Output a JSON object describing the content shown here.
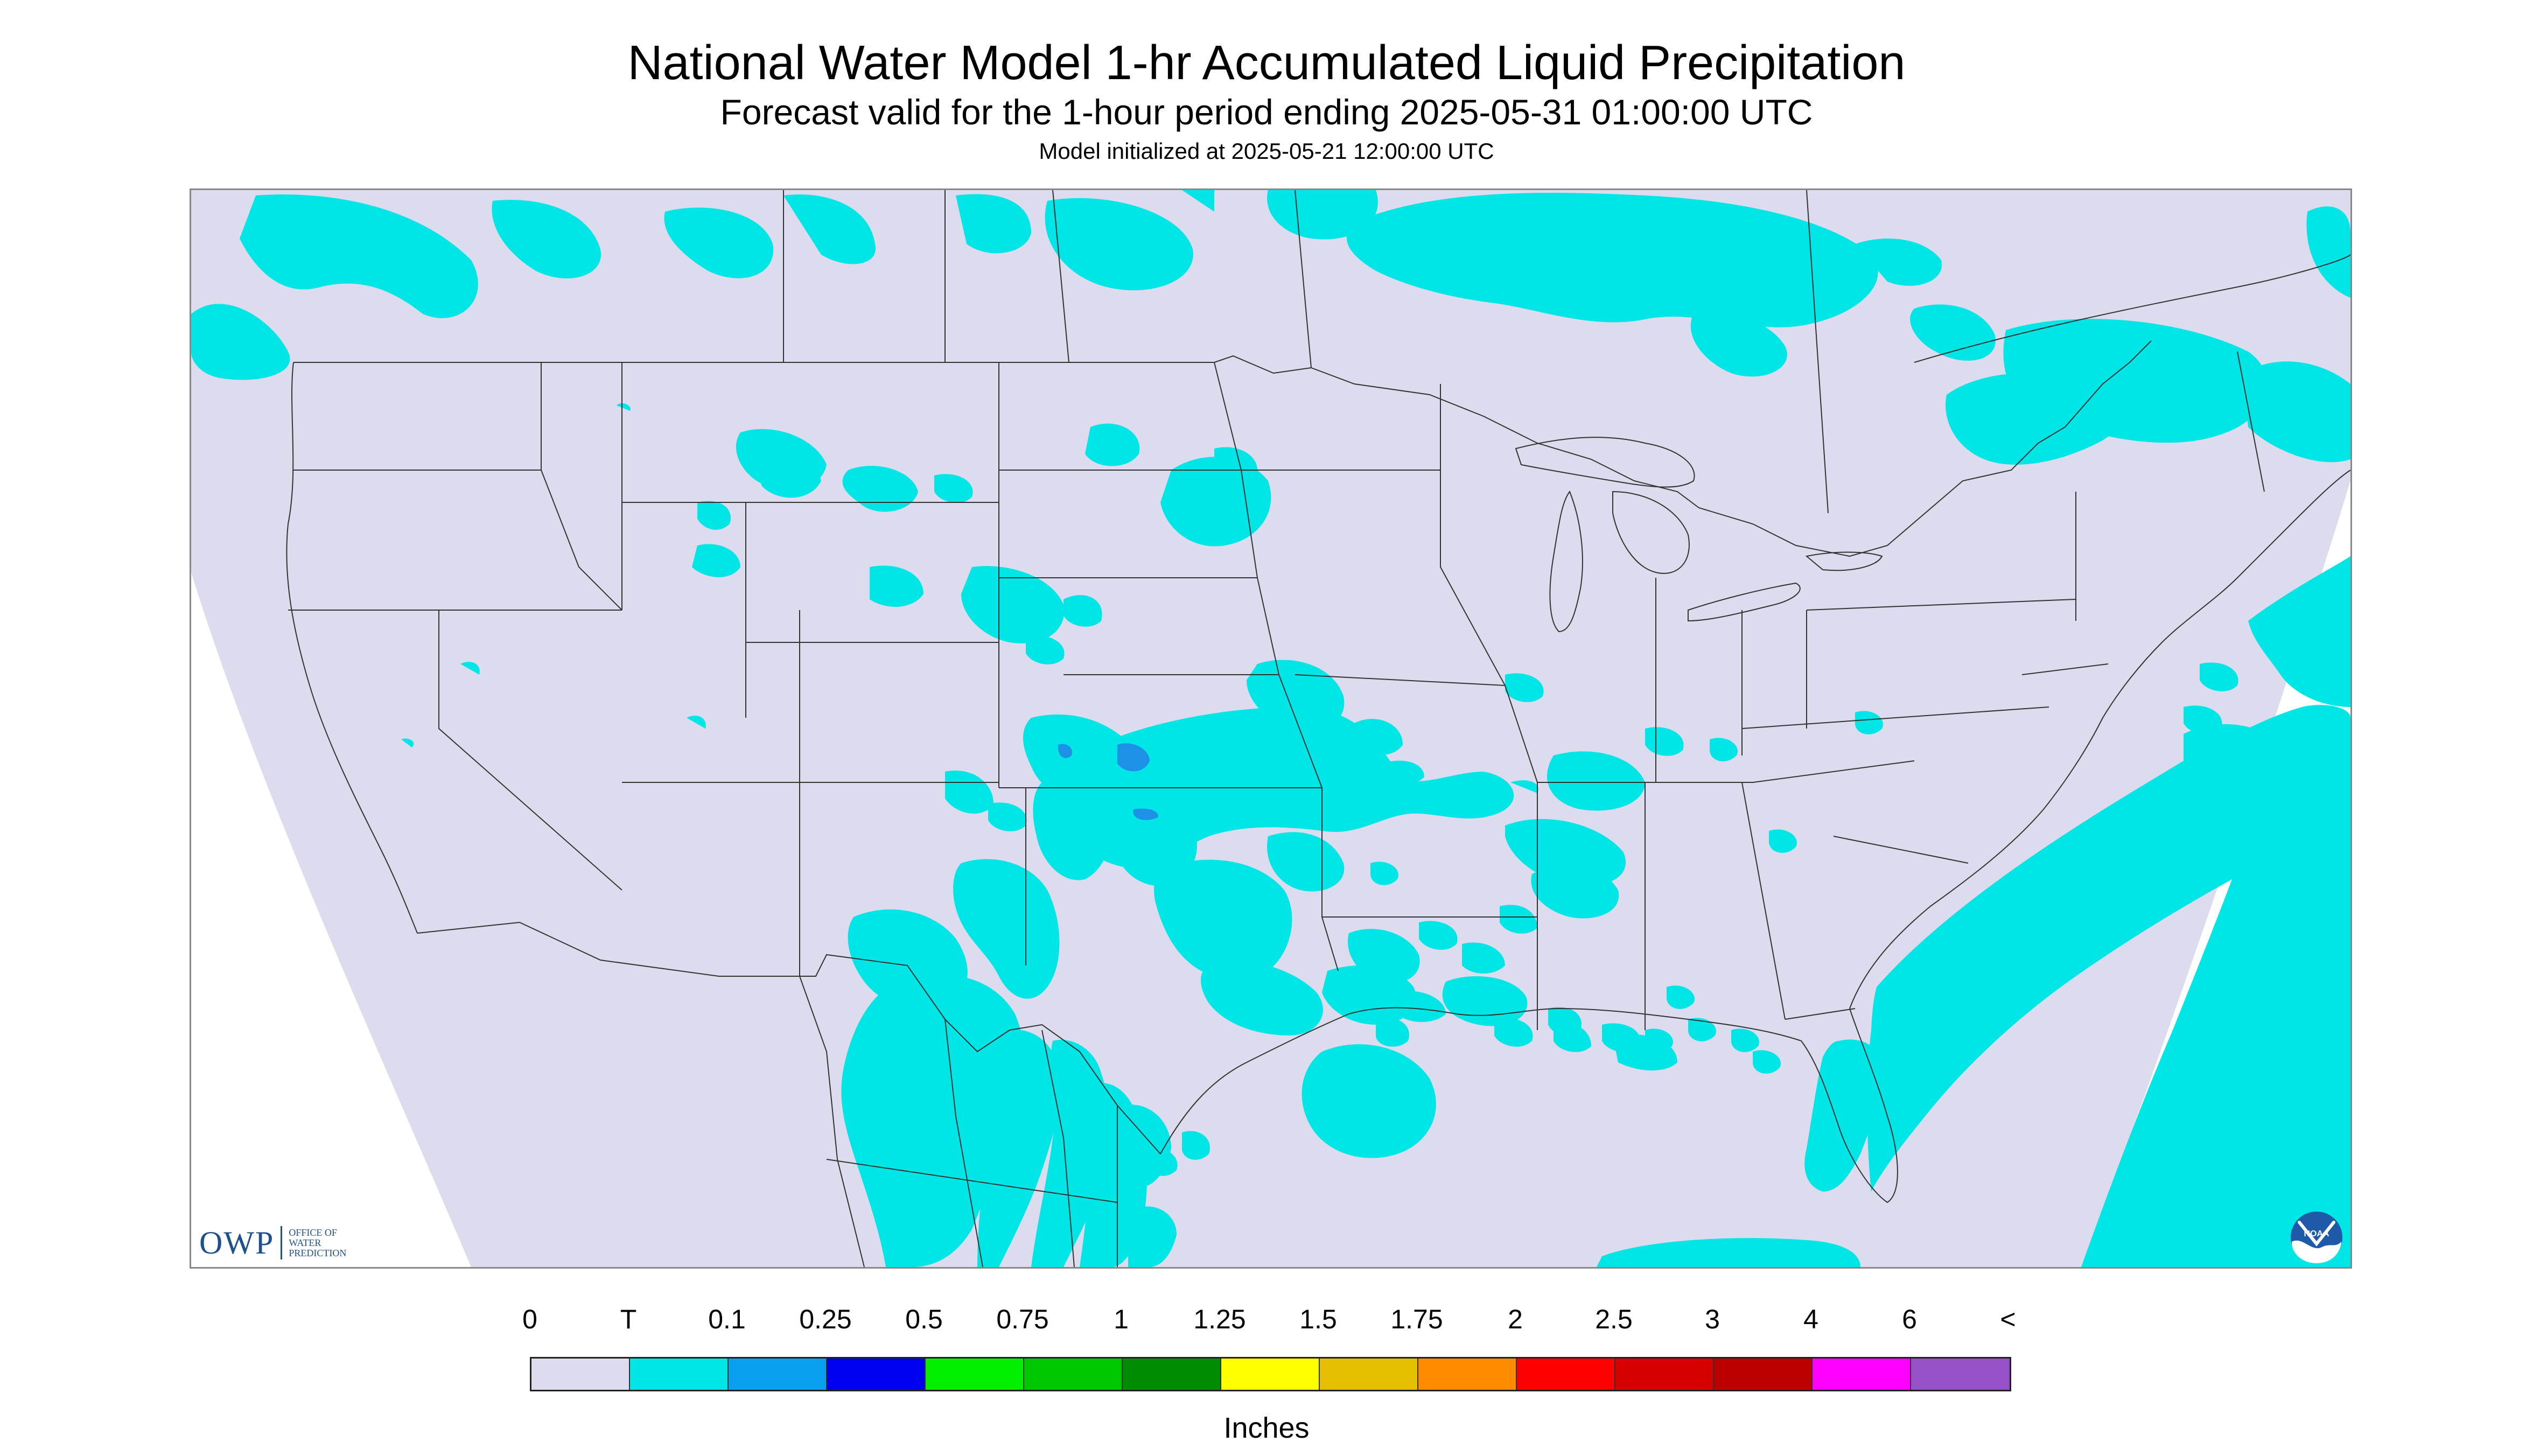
{
  "header": {
    "title": "National Water Model 1-hr Accumulated Liquid Precipitation",
    "subtitle": "Forecast valid for the 1-hour period ending 2025-05-31 01:00:00 UTC",
    "init": "Model initialized at 2025-05-21 12:00:00 UTC"
  },
  "map": {
    "colors": {
      "background": "#dcdcee",
      "trace": "#00e5e5",
      "light_blue": "#1e90e6",
      "outside": "#ffffff",
      "borders": "#333333"
    }
  },
  "logos": {
    "owp": {
      "letters": "OWP",
      "line1": "OFFICE OF",
      "line2": "WATER",
      "line3": "PREDICTION"
    },
    "noaa": {
      "text": "NOAA"
    }
  },
  "legend": {
    "labels": [
      "0",
      "T",
      "0.1",
      "0.25",
      "0.5",
      "0.75",
      "1",
      "1.25",
      "1.5",
      "1.75",
      "2",
      "2.5",
      "3",
      "4",
      "6",
      "<"
    ],
    "colors": [
      "#dcdcee",
      "#00e5e5",
      "#0aa0f0",
      "#0000f0",
      "#00f000",
      "#00c800",
      "#008c00",
      "#ffff00",
      "#e6be00",
      "#ff8c00",
      "#ff0000",
      "#d70000",
      "#bc0000",
      "#ff00ff",
      "#9650c8"
    ],
    "units": "Inches"
  }
}
